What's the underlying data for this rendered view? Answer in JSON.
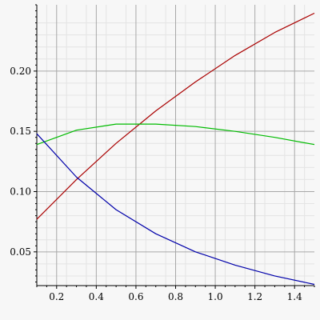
{
  "chart_data": {
    "type": "line",
    "xlim": [
      0.1,
      1.5
    ],
    "ylim": [
      0.022,
      0.255
    ],
    "x_ticks": [
      0.2,
      0.4,
      0.6,
      0.8,
      1.0,
      1.2,
      1.4
    ],
    "x_tick_labels": [
      "0.2",
      "0.4",
      "0.6",
      "0.8",
      "1.0",
      "1.2",
      "1.4"
    ],
    "y_ticks": [
      0.05,
      0.1,
      0.15,
      0.2
    ],
    "y_tick_labels": [
      "0.05",
      "0.10",
      "0.15",
      "0.20"
    ],
    "grid": true,
    "background_color": "#f7f7f7",
    "series": [
      {
        "color": "#aa0000",
        "x": [
          0.1,
          0.3,
          0.5,
          0.7,
          0.9,
          1.1,
          1.3,
          1.5
        ],
        "y": [
          0.077,
          0.11,
          0.14,
          0.167,
          0.191,
          0.213,
          0.232,
          0.248
        ]
      },
      {
        "color": "#00bb00",
        "x": [
          0.1,
          0.3,
          0.5,
          0.7,
          0.9,
          1.1,
          1.3,
          1.5
        ],
        "y": [
          0.139,
          0.151,
          0.156,
          0.156,
          0.154,
          0.15,
          0.145,
          0.139
        ]
      },
      {
        "color": "#0000aa",
        "x": [
          0.1,
          0.3,
          0.5,
          0.7,
          0.9,
          1.1,
          1.3,
          1.5
        ],
        "y": [
          0.148,
          0.112,
          0.085,
          0.065,
          0.05,
          0.039,
          0.03,
          0.023
        ]
      }
    ]
  }
}
